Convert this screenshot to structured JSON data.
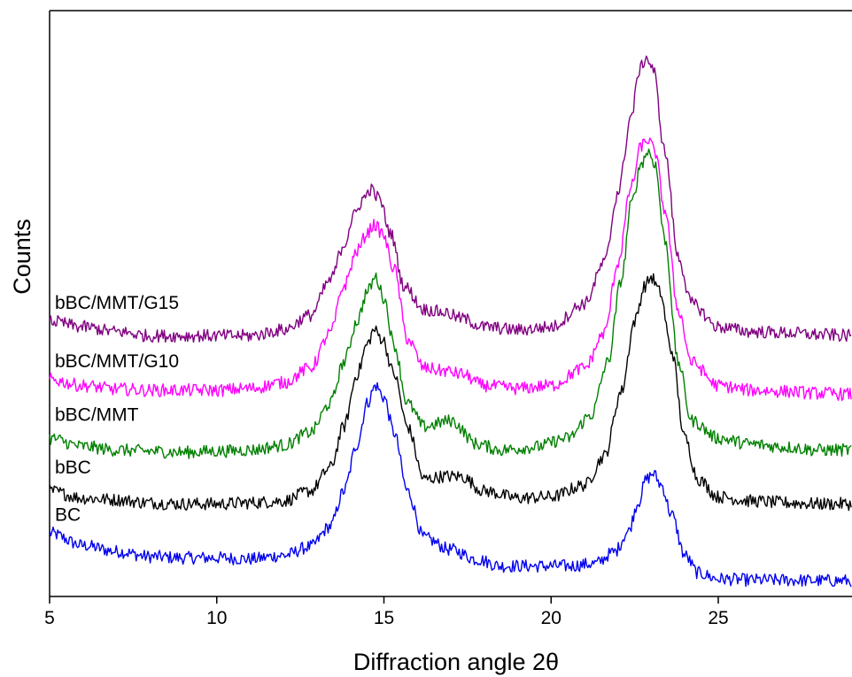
{
  "chart_data": {
    "type": "line",
    "title": "",
    "xlabel": "Diffraction angle 2θ",
    "ylabel": "Counts",
    "xlim": [
      5,
      29
    ],
    "ylim": [
      0,
      1
    ],
    "xticks": [
      5,
      10,
      15,
      20,
      25
    ],
    "yticks": [],
    "grid": false,
    "legend": "none; series labelled directly at left of each curve",
    "series": [
      {
        "name": "BC",
        "color": "#0000ee",
        "x": [
          5,
          6,
          7,
          8,
          9,
          10,
          11,
          12,
          12.8,
          13.4,
          13.8,
          14.2,
          14.5,
          14.75,
          15.0,
          15.3,
          15.7,
          16.2,
          17.0,
          17.8,
          18.5,
          19.5,
          20.5,
          21.3,
          21.9,
          22.3,
          22.6,
          22.85,
          23.05,
          23.3,
          23.6,
          24.0,
          24.4,
          25,
          26,
          27,
          28,
          29
        ],
        "y": [
          0.108,
          0.087,
          0.077,
          0.068,
          0.066,
          0.066,
          0.064,
          0.07,
          0.085,
          0.12,
          0.18,
          0.26,
          0.33,
          0.36,
          0.34,
          0.28,
          0.18,
          0.1,
          0.08,
          0.063,
          0.052,
          0.052,
          0.052,
          0.056,
          0.076,
          0.11,
          0.16,
          0.2,
          0.21,
          0.19,
          0.14,
          0.07,
          0.04,
          0.03,
          0.028,
          0.028,
          0.027,
          0.027
        ]
      },
      {
        "name": "bBC",
        "color": "#000000",
        "x": [
          5,
          6,
          7,
          8,
          9,
          10,
          11,
          12,
          12.8,
          13.4,
          13.8,
          14.2,
          14.5,
          14.7,
          14.95,
          15.3,
          15.7,
          16.2,
          16.8,
          17.3,
          18,
          19,
          20,
          21,
          21.6,
          22.1,
          22.5,
          22.8,
          23.0,
          23.25,
          23.6,
          24.0,
          24.4,
          25,
          26,
          27,
          28,
          29
        ],
        "y": [
          0.18,
          0.168,
          0.165,
          0.16,
          0.158,
          0.158,
          0.16,
          0.163,
          0.18,
          0.22,
          0.29,
          0.38,
          0.43,
          0.455,
          0.44,
          0.38,
          0.29,
          0.2,
          0.205,
          0.205,
          0.18,
          0.168,
          0.17,
          0.19,
          0.24,
          0.35,
          0.47,
          0.53,
          0.545,
          0.52,
          0.42,
          0.27,
          0.2,
          0.17,
          0.163,
          0.16,
          0.158,
          0.158
        ]
      },
      {
        "name": "bBC/MMT",
        "color": "#008000",
        "x": [
          5,
          6,
          7,
          8,
          9,
          10,
          11,
          12,
          12.8,
          13.4,
          13.8,
          14.2,
          14.5,
          14.75,
          15.0,
          15.3,
          15.7,
          16.2,
          17,
          17.8,
          18.5,
          19.5,
          20.5,
          21.2,
          21.7,
          22.1,
          22.4,
          22.7,
          22.9,
          23.1,
          23.4,
          23.8,
          24.2,
          25,
          26,
          27,
          28,
          29
        ],
        "y": [
          0.27,
          0.256,
          0.25,
          0.248,
          0.246,
          0.248,
          0.25,
          0.258,
          0.28,
          0.33,
          0.4,
          0.47,
          0.52,
          0.545,
          0.51,
          0.43,
          0.33,
          0.29,
          0.3,
          0.26,
          0.25,
          0.255,
          0.27,
          0.31,
          0.4,
          0.54,
          0.67,
          0.74,
          0.76,
          0.74,
          0.61,
          0.4,
          0.3,
          0.27,
          0.26,
          0.255,
          0.25,
          0.25
        ]
      },
      {
        "name": "bBC/MMT/G10",
        "color": "#ff00ff",
        "x": [
          5,
          6,
          7,
          8,
          9,
          10,
          11,
          12,
          12.8,
          13.4,
          13.8,
          14.2,
          14.5,
          14.7,
          14.95,
          15.3,
          15.7,
          16.2,
          16.8,
          17.3,
          18,
          19,
          20,
          21,
          21.6,
          22.0,
          22.4,
          22.7,
          22.9,
          23.1,
          23.4,
          23.8,
          24.2,
          25,
          26,
          27,
          28,
          29
        ],
        "y": [
          0.37,
          0.36,
          0.354,
          0.352,
          0.352,
          0.352,
          0.355,
          0.365,
          0.39,
          0.45,
          0.53,
          0.59,
          0.62,
          0.635,
          0.62,
          0.56,
          0.44,
          0.39,
          0.385,
          0.38,
          0.36,
          0.355,
          0.36,
          0.39,
          0.45,
          0.57,
          0.7,
          0.77,
          0.78,
          0.76,
          0.66,
          0.49,
          0.4,
          0.36,
          0.352,
          0.35,
          0.347,
          0.345
        ]
      },
      {
        "name": "bBC/MMT/G15",
        "color": "#800080",
        "x": [
          5,
          6,
          7,
          8,
          9,
          10,
          11,
          12,
          12.8,
          13.4,
          13.8,
          14.1,
          14.4,
          14.6,
          14.85,
          15.2,
          15.6,
          16.2,
          16.8,
          17.3,
          18,
          19,
          20,
          21,
          21.6,
          22.0,
          22.4,
          22.65,
          22.85,
          23.05,
          23.4,
          23.8,
          24.2,
          25,
          26,
          27,
          28,
          29
        ],
        "y": [
          0.47,
          0.46,
          0.452,
          0.445,
          0.445,
          0.445,
          0.445,
          0.455,
          0.48,
          0.54,
          0.6,
          0.65,
          0.68,
          0.695,
          0.68,
          0.62,
          0.53,
          0.49,
          0.485,
          0.475,
          0.46,
          0.455,
          0.46,
          0.5,
          0.57,
          0.69,
          0.82,
          0.9,
          0.92,
          0.9,
          0.76,
          0.58,
          0.5,
          0.46,
          0.452,
          0.45,
          0.447,
          0.445
        ]
      }
    ]
  }
}
